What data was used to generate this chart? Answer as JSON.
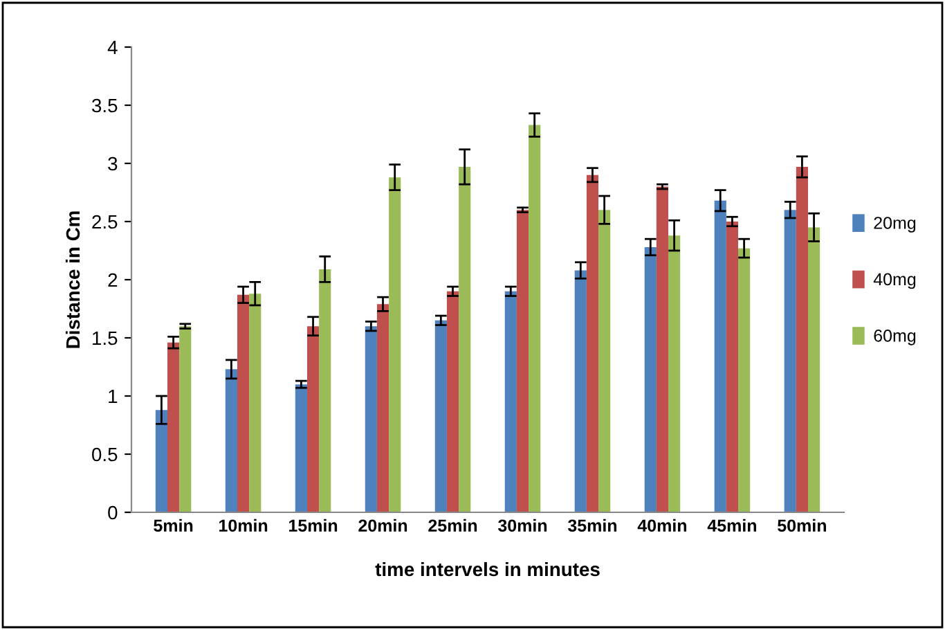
{
  "chart_data": {
    "type": "bar",
    "xlabel": "time intervels in minutes",
    "ylabel": "Distance in Cm",
    "categories": [
      "5min",
      "10min",
      "15min",
      "20min",
      "25min",
      "30min",
      "35min",
      "40min",
      "45min",
      "50min"
    ],
    "series": [
      {
        "name": "20mg",
        "color": "#4f81bd",
        "values": [
          0.88,
          1.23,
          1.1,
          1.6,
          1.65,
          1.9,
          2.08,
          2.28,
          2.68,
          2.6
        ],
        "errors": [
          0.12,
          0.08,
          0.03,
          0.04,
          0.04,
          0.04,
          0.07,
          0.07,
          0.09,
          0.07
        ]
      },
      {
        "name": "40mg",
        "color": "#c0504d",
        "values": [
          1.46,
          1.87,
          1.6,
          1.79,
          1.9,
          2.6,
          2.9,
          2.8,
          2.5,
          2.97
        ],
        "errors": [
          0.05,
          0.07,
          0.08,
          0.06,
          0.04,
          0.02,
          0.06,
          0.02,
          0.04,
          0.09
        ]
      },
      {
        "name": "60mg",
        "color": "#9bbb59",
        "values": [
          1.6,
          1.88,
          2.09,
          2.88,
          2.97,
          3.33,
          2.6,
          2.38,
          2.27,
          2.45
        ],
        "errors": [
          0.02,
          0.1,
          0.11,
          0.11,
          0.15,
          0.1,
          0.12,
          0.13,
          0.08,
          0.12
        ]
      }
    ],
    "ylim": [
      0,
      4
    ],
    "yticks": [
      0,
      0.5,
      1,
      1.5,
      2,
      2.5,
      3,
      3.5,
      4
    ],
    "grid": false,
    "legend": "right"
  }
}
